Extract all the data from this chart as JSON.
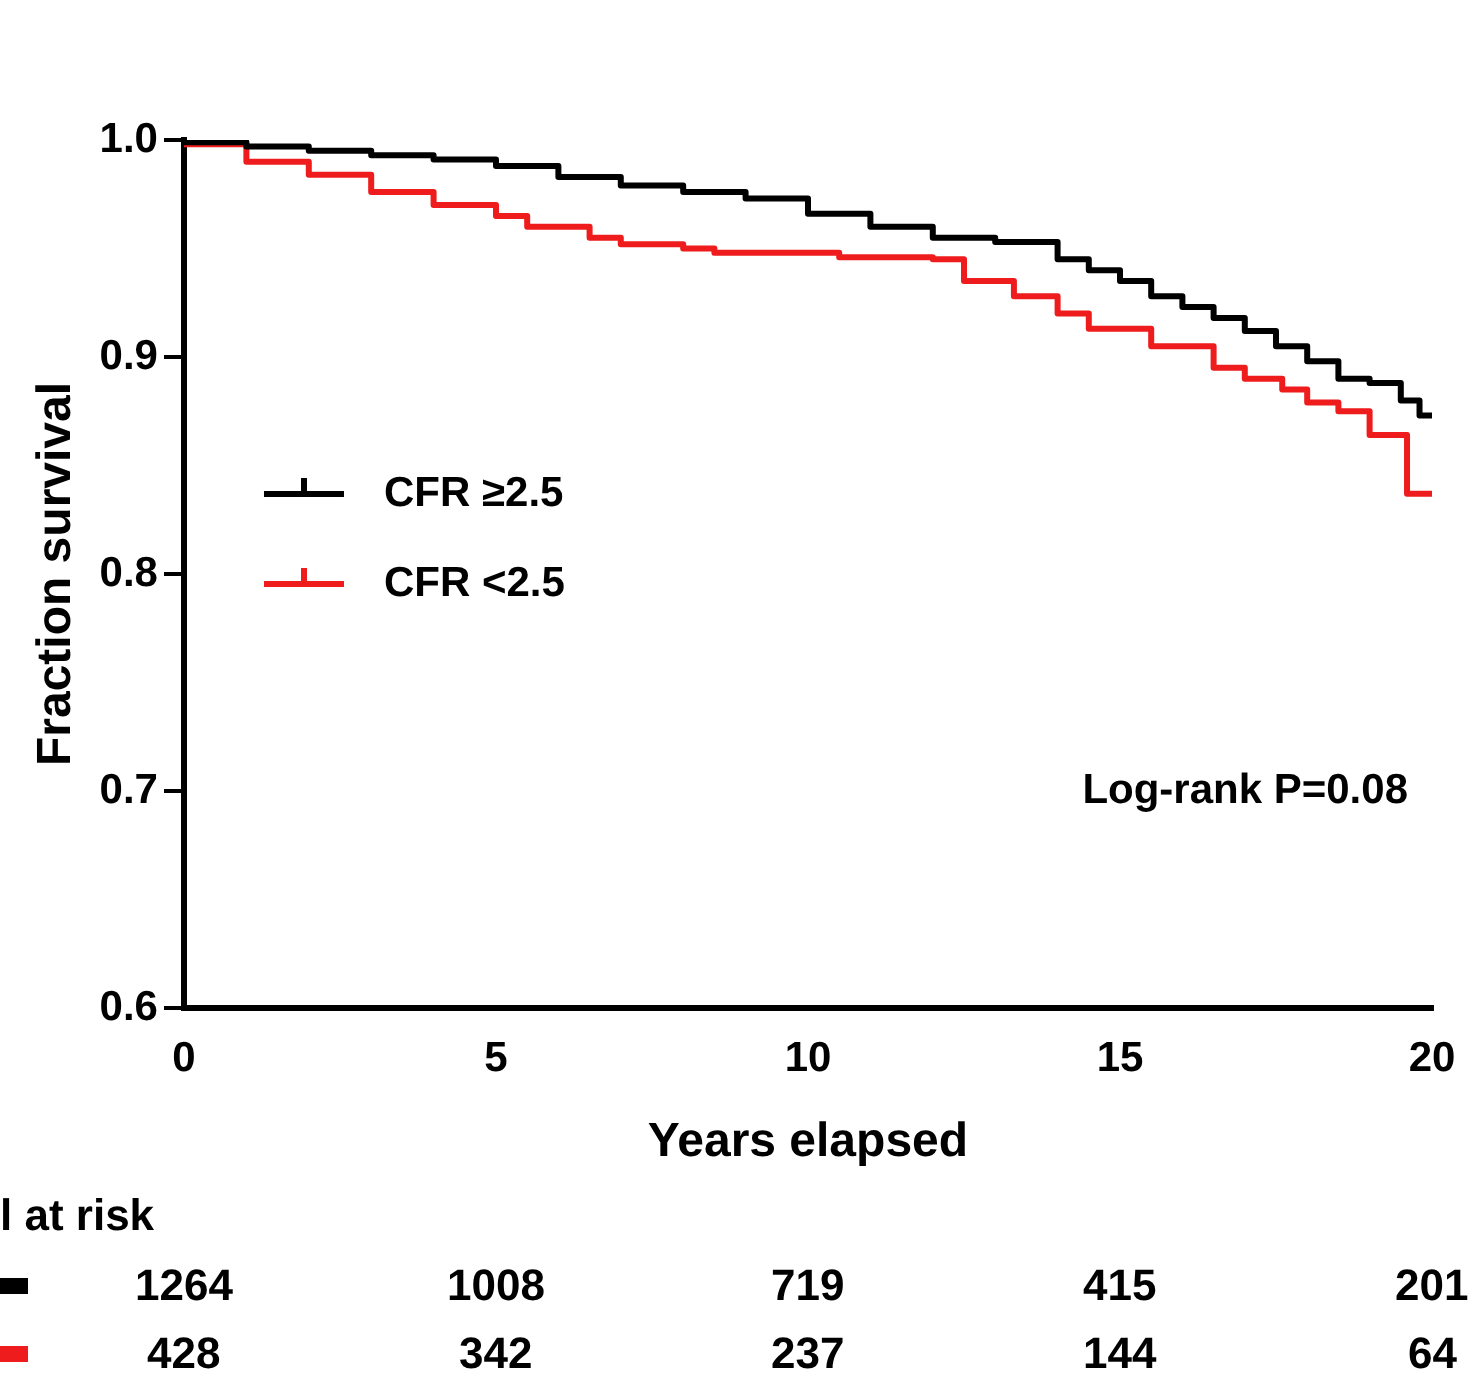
{
  "chart_data": {
    "type": "step",
    "xlabel": "Years elapsed",
    "ylabel": "Fraction survival",
    "xlim": [
      0,
      20
    ],
    "xticks": [
      0,
      5,
      10,
      15,
      20
    ],
    "ylim": [
      0.6,
      1.0
    ],
    "yticks": [
      0.6,
      0.7,
      0.8,
      0.9,
      {
        "value": 1,
        "label": "1.0"
      }
    ],
    "grid": false,
    "legend": "left",
    "marker": "none",
    "line_style": "solid",
    "series": [
      {
        "name": "CFR ≥2.5",
        "color": "#000000",
        "x": [
          0,
          1,
          2,
          3,
          4,
          5,
          6,
          7,
          8,
          9,
          10,
          11,
          12,
          12.5,
          13,
          14,
          14.5,
          15,
          15.5,
          16,
          16.5,
          17,
          17.5,
          18,
          18.5,
          19,
          19.5,
          19.8,
          20
        ],
        "values": [
          1.0,
          0.999,
          0.997,
          0.995,
          0.993,
          0.991,
          0.988,
          0.983,
          0.979,
          0.976,
          0.973,
          0.966,
          0.96,
          0.955,
          0.955,
          0.953,
          0.945,
          0.94,
          0.935,
          0.928,
          0.923,
          0.918,
          0.912,
          0.905,
          0.898,
          0.89,
          0.888,
          0.88,
          0.873
        ]
      },
      {
        "name": "CFR <2.5",
        "color": "#ee1c1c",
        "x": [
          0,
          1,
          2,
          3,
          4,
          5,
          5.5,
          6.5,
          7,
          8,
          8.5,
          9.5,
          10.5,
          12,
          12.5,
          13.3,
          14,
          14.5,
          15.5,
          16.5,
          17,
          17.6,
          18,
          18.5,
          19,
          19.6,
          19.8,
          20
        ],
        "values": [
          1.0,
          0.998,
          0.99,
          0.984,
          0.976,
          0.97,
          0.965,
          0.96,
          0.955,
          0.952,
          0.95,
          0.948,
          0.948,
          0.946,
          0.945,
          0.935,
          0.928,
          0.92,
          0.913,
          0.905,
          0.895,
          0.89,
          0.885,
          0.879,
          0.875,
          0.864,
          0.837,
          0.837
        ]
      }
    ],
    "annotations": [
      "Log-rank P=0.08",
      "l at risk",
      "1264",
      "1008",
      "719",
      "415",
      "201",
      "428",
      "342",
      "237",
      "144",
      "64"
    ]
  }
}
